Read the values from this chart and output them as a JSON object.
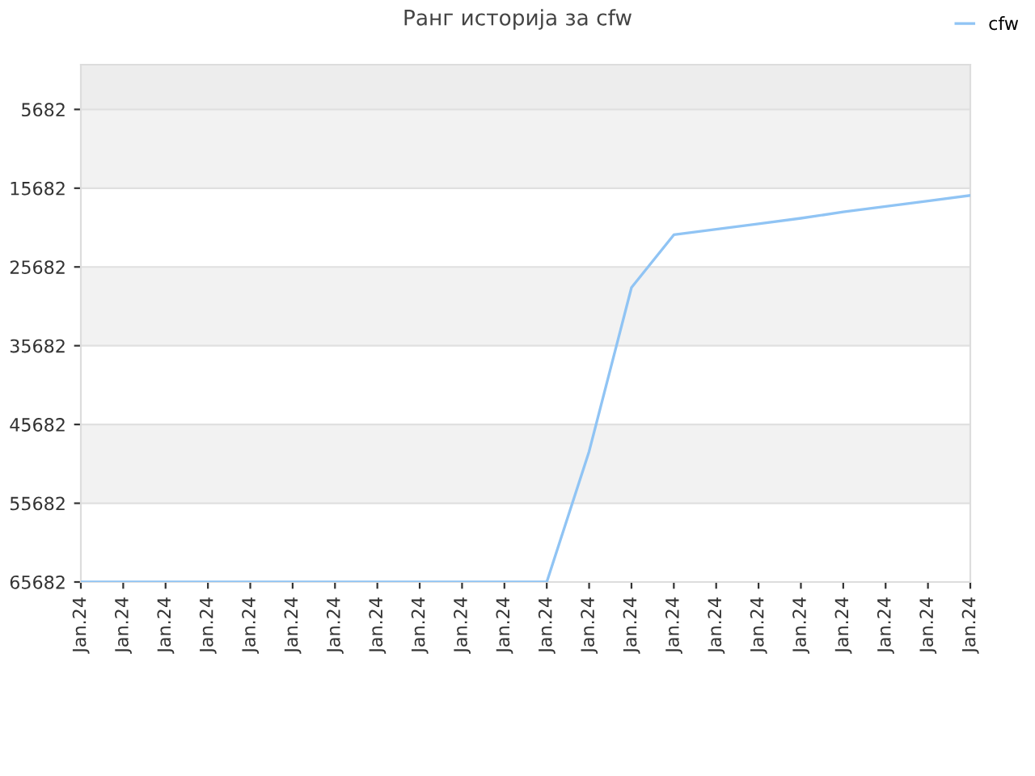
{
  "chart_data": {
    "type": "line",
    "title": "Ранг историја за cfw",
    "categories": [
      "Jan.24",
      "Jan.24",
      "Jan.24",
      "Jan.24",
      "Jan.24",
      "Jan.24",
      "Jan.24",
      "Jan.24",
      "Jan.24",
      "Jan.24",
      "Jan.24",
      "Jan.24",
      "Jan.24",
      "Jan.24",
      "Jan.24",
      "Jan.24",
      "Jan.24",
      "Jan.24",
      "Jan.24",
      "Jan.24",
      "Jan.24",
      "Jan.24"
    ],
    "series": [
      {
        "name": "cfw",
        "color": "#90c4f4",
        "values": [
          65682,
          65682,
          65682,
          65682,
          65682,
          65682,
          65682,
          65682,
          65682,
          65682,
          65682,
          65682,
          49100,
          28300,
          21600,
          20900,
          20200,
          19500,
          18700,
          18000,
          17300,
          16600
        ]
      }
    ],
    "ylim": [
      65682,
      0
    ],
    "yticks": [
      5682,
      15682,
      25682,
      35682,
      45682,
      55682,
      65682
    ],
    "bands": [
      {
        "axis": "y",
        "from": 0,
        "to": 5682,
        "color": "#ededed"
      },
      {
        "axis": "y",
        "from": 5682,
        "to": 15682,
        "color": "#f2f2f2"
      },
      {
        "axis": "y",
        "from": 25682,
        "to": 35682,
        "color": "#f2f2f2"
      },
      {
        "axis": "y",
        "from": 45682,
        "to": 55682,
        "color": "#f2f2f2"
      }
    ],
    "grid": "y",
    "legend": "top right",
    "marker": "none",
    "line_style": "solid"
  }
}
